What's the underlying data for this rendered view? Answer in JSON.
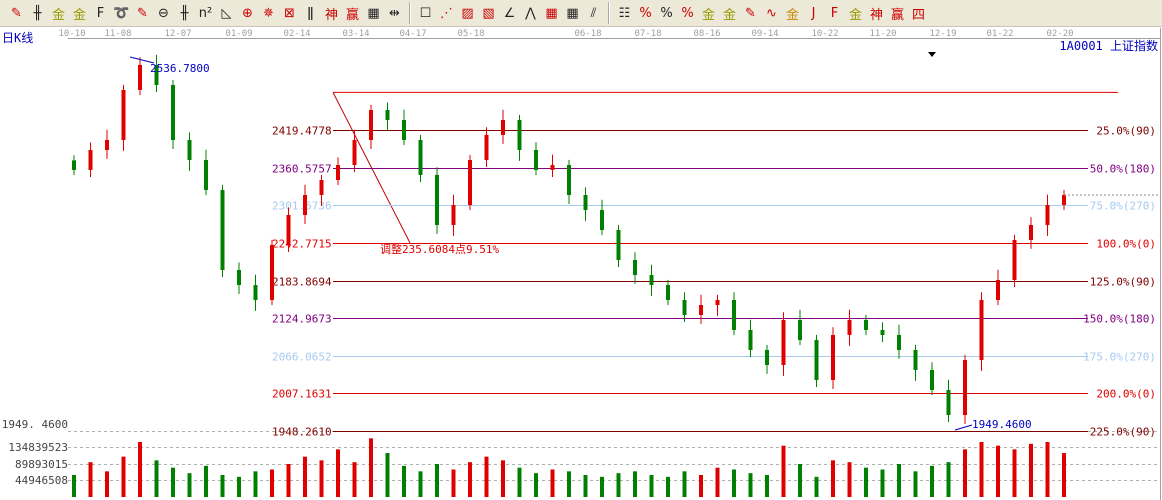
{
  "toolbar": {
    "groups": [
      [
        {
          "name": "pen-icon",
          "glyph": "✎",
          "color": "#c00"
        },
        {
          "name": "parallel-lines-icon",
          "glyph": "╫"
        },
        {
          "name": "gold-split-icon",
          "glyph": "金",
          "color": "#990"
        },
        {
          "name": "gold-split-2-icon",
          "glyph": "金",
          "color": "#990"
        },
        {
          "name": "f-line-icon",
          "glyph": "F"
        },
        {
          "name": "spiral-icon",
          "glyph": "➰"
        },
        {
          "name": "marker-icon",
          "glyph": "✎",
          "color": "#c00"
        },
        {
          "name": "circle-ruler-icon",
          "glyph": "⊖"
        },
        {
          "name": "grid-lines-icon",
          "glyph": "╫"
        },
        {
          "name": "square-lines-icon",
          "glyph": "n²"
        },
        {
          "name": "triangle-icon",
          "glyph": "◺"
        },
        {
          "name": "target-icon",
          "glyph": "⊕",
          "color": "#c00"
        },
        {
          "name": "compass-icon",
          "glyph": "✵",
          "color": "#c00"
        },
        {
          "name": "gann-box-icon",
          "glyph": "⊠",
          "color": "#c00"
        },
        {
          "name": "wave-icon",
          "glyph": "ǁ"
        },
        {
          "name": "god-line-icon",
          "glyph": "神",
          "color": "#c00"
        },
        {
          "name": "boxed-icon",
          "glyph": "赢",
          "color": "#c00"
        },
        {
          "name": "calendar-icon",
          "glyph": "▦"
        },
        {
          "name": "measure-icon",
          "glyph": "⇹"
        }
      ],
      [
        {
          "name": "rectangle-icon",
          "glyph": "☐"
        },
        {
          "name": "fan-lines-icon",
          "glyph": "⋰",
          "color": "#c00"
        },
        {
          "name": "gann-fan-icon",
          "glyph": "▨",
          "color": "#c00"
        },
        {
          "name": "gann-square-icon",
          "glyph": "▧",
          "color": "#c00"
        },
        {
          "name": "angle-icon",
          "glyph": "∠"
        },
        {
          "name": "zigzag-icon",
          "glyph": "⋀"
        },
        {
          "name": "grid-box-icon",
          "glyph": "▦",
          "color": "#c00"
        },
        {
          "name": "grid-box-2-icon",
          "glyph": "▦"
        },
        {
          "name": "channel-icon",
          "glyph": "⫽"
        }
      ],
      [
        {
          "name": "period-lines-icon",
          "glyph": "☷"
        },
        {
          "name": "percent-line-icon",
          "glyph": "%",
          "color": "#c00"
        },
        {
          "name": "percent-icon",
          "glyph": "%"
        },
        {
          "name": "percent-levels-icon",
          "glyph": "%",
          "color": "#c00"
        },
        {
          "name": "gold-circle-icon",
          "glyph": "金",
          "color": "#990"
        },
        {
          "name": "gold-levels-icon",
          "glyph": "金",
          "color": "#990"
        },
        {
          "name": "pen-level-icon",
          "glyph": "✎",
          "color": "#c00"
        },
        {
          "name": "sine-icon",
          "glyph": "∿",
          "color": "#c00"
        },
        {
          "name": "gold-box-icon",
          "glyph": "金",
          "color": "#c80"
        },
        {
          "name": "j-angle-icon",
          "glyph": "J",
          "color": "#c00"
        },
        {
          "name": "f-angle-icon",
          "glyph": "F",
          "color": "#c00"
        },
        {
          "name": "gold-angle-icon",
          "glyph": "金",
          "color": "#990"
        },
        {
          "name": "god-angle-icon",
          "glyph": "神",
          "color": "#c00"
        },
        {
          "name": "win-angle-icon",
          "glyph": "赢",
          "color": "#c00"
        },
        {
          "name": "four-angle-icon",
          "glyph": "四",
          "color": "#c00"
        }
      ]
    ]
  },
  "header": {
    "period_label": "日K线",
    "symbol_label": "1A0001  上证指数"
  },
  "colors": {
    "up": "#e00000",
    "down": "#008000",
    "label_blue": "#0000c0",
    "axis_gray": "#a0a0a0"
  },
  "chart_data": {
    "type": "candlestick",
    "x_ticks": [
      "10-10",
      "11-08",
      "12-07",
      "01-09",
      "02-14",
      "03-14",
      "04-17",
      "05-18",
      "06-18",
      "07-18",
      "08-16",
      "09-14",
      "10-22",
      "11-20",
      "12-19",
      "01-22",
      "02-20"
    ],
    "closes": [
      2356.9,
      2388.2,
      2403.8,
      2482.1,
      2521.3,
      2489.9,
      2403.8,
      2372.5,
      2325.6,
      2200.3,
      2176.8,
      2153.4,
      2239.5,
      2286.4,
      2317.7,
      2341.2,
      2364.7,
      2403.8,
      2450.8,
      2435.1,
      2403.8,
      2349.1,
      2270.8,
      2302.1,
      2372.5,
      2411.7,
      2435.1,
      2388.2,
      2356.9,
      2364.7,
      2317.7,
      2294.2,
      2262.9,
      2216.0,
      2192.5,
      2176.8,
      2153.4,
      2129.9,
      2145.5,
      2153.4,
      2106.4,
      2075.1,
      2051.6,
      2122.1,
      2090.7,
      2028.1,
      2098.6,
      2122.1,
      2106.4,
      2098.6,
      2075.1,
      2043.8,
      2012.5,
      1973.3,
      2059.4,
      2153.4,
      2184.7,
      2247.3,
      2270.8,
      2302.1,
      2317.7
    ],
    "volumes": [
      60,
      95,
      70,
      110,
      150,
      100,
      80,
      65,
      85,
      60,
      55,
      70,
      75,
      90,
      110,
      100,
      130,
      95,
      160,
      120,
      85,
      70,
      90,
      75,
      95,
      110,
      100,
      80,
      65,
      75,
      70,
      60,
      55,
      65,
      70,
      60,
      55,
      70,
      60,
      80,
      75,
      65,
      60,
      140,
      90,
      55,
      100,
      95,
      80,
      75,
      90,
      70,
      85,
      95,
      130,
      150,
      140,
      130,
      145,
      150,
      120
    ],
    "volume_ticks": [
      "44946508",
      "89893015",
      "134839523"
    ],
    "high_label": "2536.7800",
    "low_label": "1949.4600",
    "left_low_label": "1949. 4600",
    "current_price": 2317.7,
    "fibonacci": {
      "levels": [
        {
          "price": 2419.4778,
          "price_label": "2419.4778",
          "pct_label": "25.0%(90)",
          "color": "#800000"
        },
        {
          "price": 2360.5757,
          "price_label": "2360.5757",
          "pct_label": "50.0%(180)",
          "color": "#800080"
        },
        {
          "price": 2301.6736,
          "price_label": "2301.6736",
          "pct_label": "75.0%(270)",
          "color": "#a6caf0"
        },
        {
          "price": 2242.7715,
          "price_label": "2242.7715",
          "pct_label": "100.0%(0)",
          "color": "#e00000"
        },
        {
          "price": 2183.8694,
          "price_label": "2183.8694",
          "pct_label": "125.0%(90)",
          "color": "#800000"
        },
        {
          "price": 2124.9673,
          "price_label": "2124.9673",
          "pct_label": "150.0%(180)",
          "color": "#800080"
        },
        {
          "price": 2066.0652,
          "price_label": "2066.0652",
          "pct_label": "175.0%(270)",
          "color": "#a6caf0"
        },
        {
          "price": 2007.1631,
          "price_label": "2007.1631",
          "pct_label": "200.0%(0)",
          "color": "#e00000"
        },
        {
          "price": 1948.261,
          "price_label": "1948.2610",
          "pct_label": "225.0%(90)",
          "color": "#800000"
        }
      ],
      "top_price": 2478.3799,
      "adjustment_label": "调整235.6084点9.51%"
    }
  }
}
